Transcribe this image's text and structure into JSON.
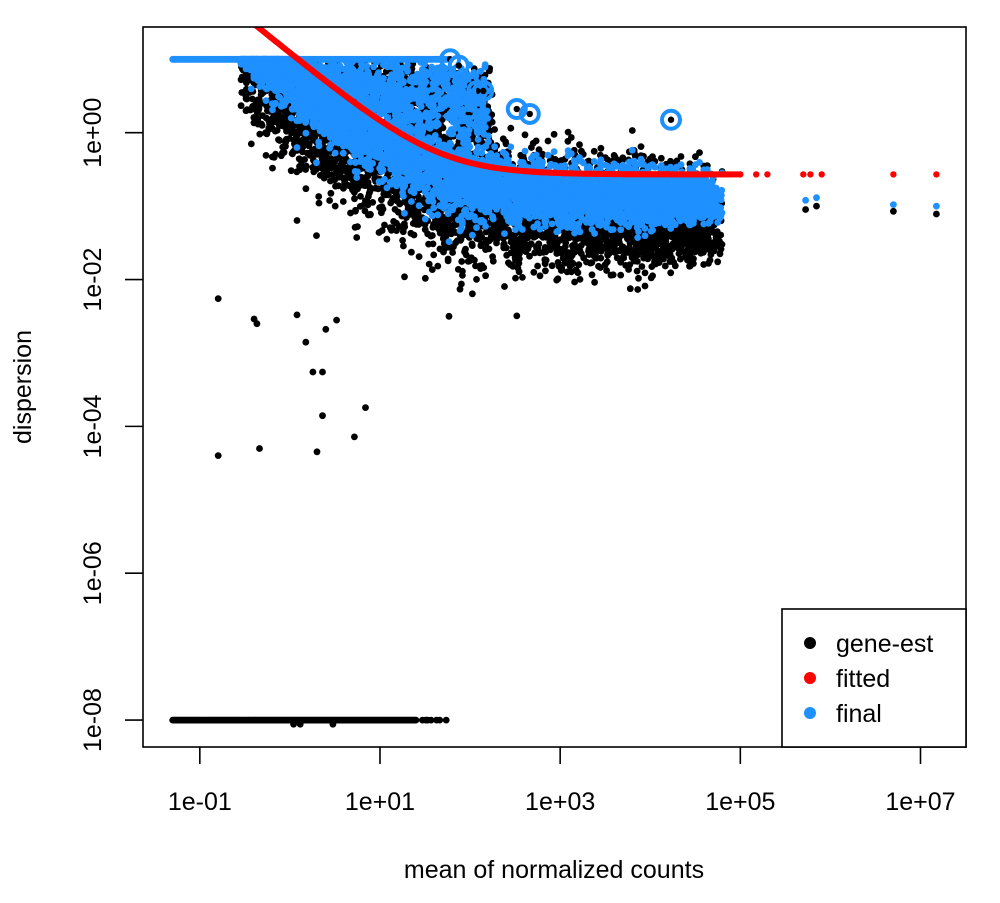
{
  "chart_data": {
    "type": "scatter",
    "title": "",
    "xlabel": "mean of normalized counts",
    "ylabel": "dispersion",
    "xscale": "log10",
    "yscale": "log10",
    "xlim": [
      0.0234,
      32000000
    ],
    "ylim": [
      4.3e-09,
      27.5
    ],
    "grid": false,
    "x_ticks": [
      {
        "value": 0.1,
        "label": "1e-01"
      },
      {
        "value": 10,
        "label": "1e+01"
      },
      {
        "value": 1000,
        "label": "1e+03"
      },
      {
        "value": 100000,
        "label": "1e+05"
      },
      {
        "value": 10000000,
        "label": "1e+07"
      }
    ],
    "y_ticks": [
      {
        "value": 1,
        "label": "1e+00"
      },
      {
        "value": 0.01,
        "label": "1e-02"
      },
      {
        "value": 0.0001,
        "label": "1e-04"
      },
      {
        "value": 1e-06,
        "label": "1e-06"
      },
      {
        "value": 1e-08,
        "label": "1e-08"
      }
    ],
    "legend": {
      "position": "bottom-right",
      "entries": [
        {
          "label": "gene-est",
          "color": "#000000"
        },
        {
          "label": "fitted",
          "color": "#ff0000"
        },
        {
          "label": "final",
          "color": "#1e90ff"
        }
      ]
    },
    "fitted_curve": {
      "formula": "asymptDisp + extraPois / mean",
      "asymptDisp": 0.27,
      "extraPois": 12
    },
    "series": [
      {
        "name": "gene-est",
        "color": "#000000",
        "description": "per-gene dispersion estimates; dense cloud below the fitted trend plus scattered low outliers and a floor at 1e-08",
        "cloud": {
          "x_range": [
            0.3,
            60000
          ],
          "upper_cap": 10,
          "floor_value": 1e-08,
          "floor_x_range": [
            0.05,
            55
          ]
        },
        "outliers": [
          {
            "x": 0.16,
            "y": 0.0055
          },
          {
            "x": 0.16,
            "y": 4e-05
          },
          {
            "x": 0.43,
            "y": 0.0025
          },
          {
            "x": 0.4,
            "y": 0.0029
          },
          {
            "x": 0.46,
            "y": 5e-05
          },
          {
            "x": 1.2,
            "y": 0.0033
          },
          {
            "x": 1.5,
            "y": 0.0014
          },
          {
            "x": 1.8,
            "y": 0.00055
          },
          {
            "x": 2.3,
            "y": 0.00055
          },
          {
            "x": 2.5,
            "y": 0.0021
          },
          {
            "x": 2.3,
            "y": 0.00014
          },
          {
            "x": 2.0,
            "y": 4.5e-05
          },
          {
            "x": 5.2,
            "y": 7.2e-05
          },
          {
            "x": 6.9,
            "y": 0.00018
          },
          {
            "x": 3.3,
            "y": 0.0028
          },
          {
            "x": 1.1,
            "y": 8.8e-09
          },
          {
            "x": 1.3,
            "y": 8.8e-09
          },
          {
            "x": 3.0,
            "y": 8.8e-09
          },
          {
            "x": 330,
            "y": 0.0032
          },
          {
            "x": 6000,
            "y": 0.0075
          },
          {
            "x": 5000000,
            "y": 0.085
          },
          {
            "x": 15000000,
            "y": 0.078
          },
          {
            "x": 700000,
            "y": 0.1
          },
          {
            "x": 530000,
            "y": 0.09
          }
        ]
      },
      {
        "name": "fitted",
        "color": "#ff0000",
        "description": "fitted trend value for each gene, lying on the curve",
        "points_beyond_cloud": [
          {
            "x": 100000,
            "y": 0.27
          },
          {
            "x": 150000,
            "y": 0.27
          },
          {
            "x": 200000,
            "y": 0.27
          },
          {
            "x": 500000,
            "y": 0.27
          },
          {
            "x": 600000,
            "y": 0.27
          },
          {
            "x": 800000,
            "y": 0.27
          },
          {
            "x": 5000000,
            "y": 0.27
          },
          {
            "x": 15000000,
            "y": 0.27
          }
        ]
      },
      {
        "name": "final",
        "color": "#1e90ff",
        "description": "final shrunken dispersions; dense band shrunk toward the trend, capped at 10, with ringed outliers",
        "cap_value": 10,
        "cap_x_range": [
          0.05,
          60
        ],
        "ringed_outliers": [
          {
            "x": 60,
            "y": 10
          },
          {
            "x": 75,
            "y": 8.2
          },
          {
            "x": 100,
            "y": 4.4
          },
          {
            "x": 120,
            "y": 3.7
          },
          {
            "x": 140,
            "y": 3.7
          },
          {
            "x": 330,
            "y": 2.1
          },
          {
            "x": 460,
            "y": 1.8
          },
          {
            "x": 17000,
            "y": 1.5
          }
        ],
        "right_points": [
          {
            "x": 5000000,
            "y": 0.105
          },
          {
            "x": 15000000,
            "y": 0.1
          },
          {
            "x": 530000,
            "y": 0.12
          },
          {
            "x": 700000,
            "y": 0.13
          }
        ]
      }
    ]
  }
}
